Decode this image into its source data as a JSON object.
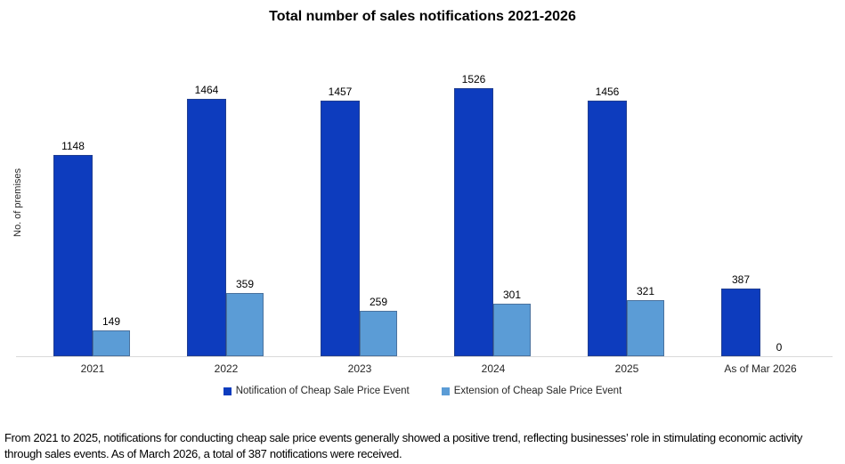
{
  "title": "Total number of sales notifications 2021-2026",
  "chart_data": {
    "type": "bar",
    "title": "Total number of sales notifications 2021-2026",
    "xlabel": "",
    "ylabel": "No. of premises",
    "categories": [
      "2021",
      "2022",
      "2023",
      "2024",
      "2025",
      "As of Mar 2026"
    ],
    "series": [
      {
        "name": "Notification of Cheap Sale Price Event",
        "color": "#0d3cbe",
        "values": [
          1148,
          1464,
          1457,
          1526,
          1456,
          387
        ]
      },
      {
        "name": "Extension of Cheap Sale Price Event",
        "color": "#5b9cd6",
        "values": [
          149,
          359,
          259,
          301,
          321,
          0
        ]
      }
    ],
    "ylim": [
      0,
      1600
    ],
    "grid": false,
    "legend_position": "bottom",
    "data_labels": true
  },
  "footer": {
    "text": "From 2021 to 2025, notifications for conducting cheap sale price events generally showed a positive trend, reflecting businesses’ role in stimulating economic activity through sales events. As of March 2026, a total of 387 notifications were received."
  },
  "colors": {
    "background": "#ffffff",
    "axis_line": "#d9d9d9",
    "label_text": "#000000"
  }
}
